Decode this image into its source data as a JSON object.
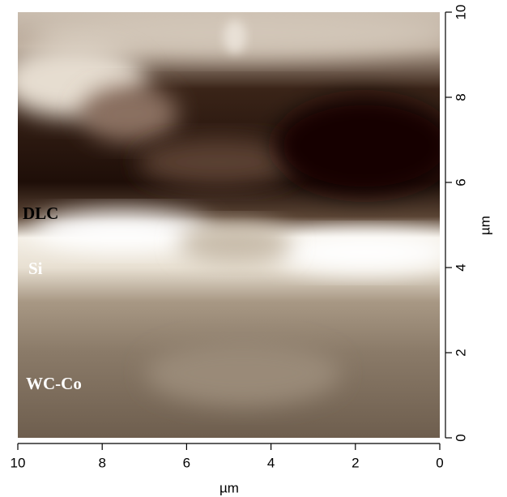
{
  "chart_data": {
    "type": "image",
    "xlabel": "µm",
    "ylabel": "µm",
    "xlim": [
      10,
      0
    ],
    "xticks": [
      10,
      8,
      6,
      4,
      2,
      0
    ],
    "ylim": [
      0,
      10
    ],
    "yticks": [
      0,
      2,
      4,
      6,
      8,
      10
    ],
    "annotations": [
      "DLC",
      "Si",
      "WC-Co"
    ]
  }
}
